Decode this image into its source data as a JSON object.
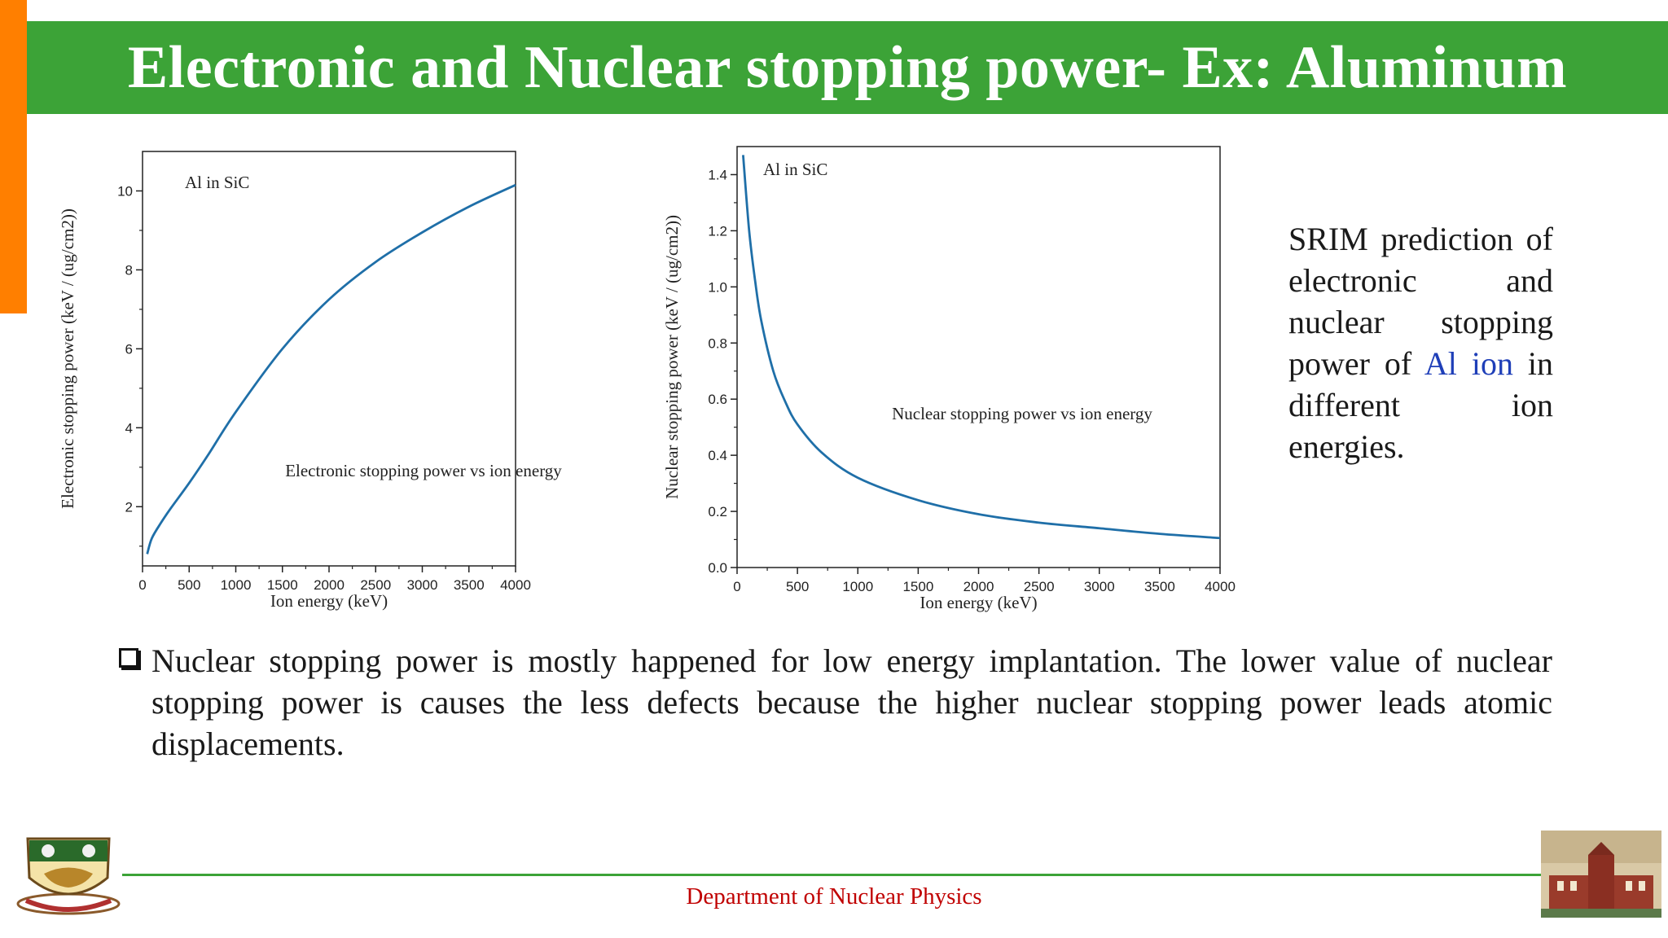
{
  "slide": {
    "title": "Electronic and Nuclear stopping power- Ex: Aluminum",
    "side_text": {
      "before": "SRIM prediction of electronic and nuclear stopping power of ",
      "highlight": "Al ion",
      "after": " in different ion energies.",
      "highlight_color": "#1f3fb8"
    },
    "bullet": "Nuclear stopping power is mostly happened for low energy implantation. The lower value of nuclear stopping power is causes the less defects because the higher nuclear stopping power leads atomic displacements.",
    "footer": "Department of Nuclear Physics",
    "colors": {
      "title_bar": "#3ca337",
      "accent_bar": "#ff7f00",
      "footer_text": "#c00000",
      "curve": "#1f6fa8"
    },
    "logos": [
      "university-emblem",
      "150-years-of-excellence-badge"
    ]
  },
  "chart_data": [
    {
      "type": "line",
      "annotation_top": "Al in SiC",
      "annotation_mid": "Electronic stopping power vs ion energy",
      "xlabel": "Ion energy (keV)",
      "ylabel": "Electronic stopping power (keV / (ug/cm2))",
      "xlim": [
        0,
        4000
      ],
      "ylim": [
        0.5,
        11
      ],
      "xticks": [
        0,
        500,
        1000,
        1500,
        2000,
        2500,
        3000,
        3500,
        4000
      ],
      "yticks": [
        2,
        4,
        6,
        8,
        10
      ],
      "grid": false,
      "series": [
        {
          "x": [
            50,
            100,
            200,
            300,
            500,
            700,
            1000,
            1500,
            2000,
            2500,
            3000,
            3500,
            4000
          ],
          "y": [
            0.8,
            1.2,
            1.6,
            1.95,
            2.6,
            3.3,
            4.4,
            6.0,
            7.25,
            8.2,
            8.95,
            9.6,
            10.15
          ]
        }
      ]
    },
    {
      "type": "line",
      "annotation_top": "Al in SiC",
      "annotation_mid": "Nuclear stopping power vs ion energy",
      "xlabel": "Ion energy (keV)",
      "ylabel": "Nuclear stopping power (keV / (ug/cm2))",
      "xlim": [
        0,
        4000
      ],
      "ylim": [
        0,
        1.5
      ],
      "xticks": [
        0,
        500,
        1000,
        1500,
        2000,
        2500,
        3000,
        3500,
        4000
      ],
      "yticks": [
        "0.0",
        "0.2",
        "0.4",
        "0.6",
        "0.8",
        "1.0",
        "1.2",
        "1.4"
      ],
      "grid": false,
      "series": [
        {
          "x": [
            50,
            100,
            150,
            200,
            300,
            400,
            500,
            700,
            1000,
            1500,
            2000,
            2500,
            3000,
            3500,
            4000
          ],
          "y": [
            1.47,
            1.2,
            1.02,
            0.88,
            0.7,
            0.59,
            0.51,
            0.41,
            0.32,
            0.24,
            0.19,
            0.16,
            0.14,
            0.12,
            0.105
          ]
        }
      ]
    }
  ]
}
